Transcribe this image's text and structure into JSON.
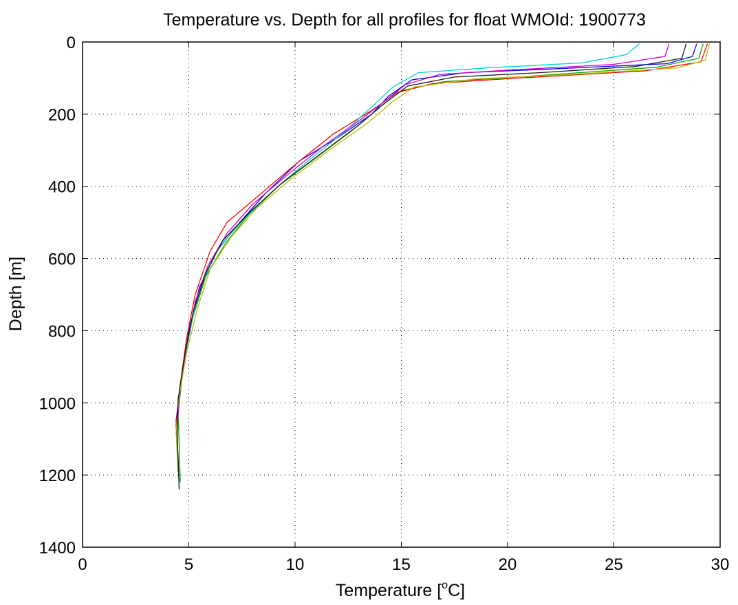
{
  "chart_data": {
    "type": "line",
    "title": "Temperature vs. Depth for all profiles for float WMOId: 1900773",
    "xlabel_prefix": "Temperature [",
    "xlabel_sup": "o",
    "xlabel_suffix": "C]",
    "ylabel": "Depth [m]",
    "xlim": [
      0,
      30
    ],
    "ylim": [
      0,
      1400
    ],
    "y_reversed": true,
    "grid": true,
    "x_ticks": [
      0,
      5,
      10,
      15,
      20,
      25,
      30
    ],
    "y_ticks": [
      0,
      200,
      400,
      600,
      800,
      1000,
      1200,
      1400
    ],
    "colors": [
      "#0000ff",
      "#00aa00",
      "#ff0000",
      "#00cccc",
      "#cc00cc",
      "#bbbb00",
      "#1a1a1a"
    ],
    "series_count": 7,
    "series": [
      {
        "color": "#0000ff",
        "values": [
          [
            28.9,
            5
          ],
          [
            28.7,
            40
          ],
          [
            27.5,
            60
          ],
          [
            22.0,
            75
          ],
          [
            18.0,
            85
          ],
          [
            15.5,
            105
          ],
          [
            14.4,
            150
          ],
          [
            13.6,
            200
          ],
          [
            12.0,
            265
          ],
          [
            10.2,
            330
          ],
          [
            8.6,
            420
          ],
          [
            7.4,
            500
          ],
          [
            6.3,
            580
          ],
          [
            5.5,
            680
          ],
          [
            5.0,
            800
          ],
          [
            4.6,
            950
          ],
          [
            4.4,
            1050
          ],
          [
            4.5,
            1150
          ],
          [
            4.55,
            1240
          ]
        ]
      },
      {
        "color": "#00aa00",
        "values": [
          [
            29.2,
            5
          ],
          [
            29.0,
            45
          ],
          [
            27.0,
            70
          ],
          [
            21.0,
            95
          ],
          [
            17.0,
            110
          ],
          [
            15.0,
            135
          ],
          [
            14.0,
            180
          ],
          [
            12.8,
            240
          ],
          [
            11.0,
            320
          ],
          [
            9.2,
            400
          ],
          [
            7.8,
            480
          ],
          [
            6.7,
            560
          ],
          [
            5.8,
            650
          ],
          [
            5.1,
            780
          ],
          [
            4.7,
            920
          ],
          [
            4.5,
            1030
          ],
          [
            4.55,
            1120
          ],
          [
            4.6,
            1220
          ]
        ]
      },
      {
        "color": "#ff0000",
        "values": [
          [
            29.4,
            5
          ],
          [
            29.1,
            55
          ],
          [
            26.5,
            80
          ],
          [
            20.5,
            100
          ],
          [
            16.5,
            115
          ],
          [
            14.8,
            140
          ],
          [
            13.6,
            190
          ],
          [
            11.8,
            255
          ],
          [
            10.0,
            340
          ],
          [
            8.4,
            420
          ],
          [
            6.8,
            500
          ],
          [
            6.0,
            580
          ],
          [
            5.3,
            700
          ],
          [
            4.9,
            820
          ],
          [
            4.6,
            950
          ],
          [
            4.4,
            1060
          ],
          [
            4.5,
            1190
          ]
        ]
      },
      {
        "color": "#00cccc",
        "values": [
          [
            26.2,
            5
          ],
          [
            25.6,
            35
          ],
          [
            23.5,
            58
          ],
          [
            19.0,
            72
          ],
          [
            15.8,
            85
          ],
          [
            14.6,
            125
          ],
          [
            13.7,
            175
          ],
          [
            12.3,
            250
          ],
          [
            10.6,
            330
          ],
          [
            9.0,
            410
          ],
          [
            7.6,
            490
          ],
          [
            6.4,
            570
          ],
          [
            5.7,
            660
          ],
          [
            5.2,
            760
          ],
          [
            4.8,
            880
          ],
          [
            4.5,
            1000
          ],
          [
            4.45,
            1100
          ],
          [
            4.5,
            1180
          ]
        ]
      },
      {
        "color": "#cc00cc",
        "values": [
          [
            27.6,
            5
          ],
          [
            27.4,
            40
          ],
          [
            25.0,
            62
          ],
          [
            20.0,
            78
          ],
          [
            16.8,
            90
          ],
          [
            15.2,
            118
          ],
          [
            14.3,
            160
          ],
          [
            13.2,
            210
          ],
          [
            11.3,
            290
          ],
          [
            9.6,
            370
          ],
          [
            8.0,
            450
          ],
          [
            6.8,
            530
          ],
          [
            5.9,
            620
          ],
          [
            5.3,
            720
          ],
          [
            4.9,
            840
          ],
          [
            4.6,
            960
          ],
          [
            4.45,
            1070
          ],
          [
            4.5,
            1170
          ]
        ]
      },
      {
        "color": "#bbbb00",
        "values": [
          [
            29.5,
            5
          ],
          [
            29.3,
            50
          ],
          [
            28.0,
            72
          ],
          [
            23.0,
            90
          ],
          [
            18.5,
            102
          ],
          [
            15.6,
            125
          ],
          [
            14.6,
            165
          ],
          [
            13.4,
            225
          ],
          [
            11.6,
            300
          ],
          [
            9.8,
            380
          ],
          [
            8.2,
            460
          ],
          [
            7.0,
            540
          ],
          [
            6.0,
            630
          ],
          [
            5.4,
            740
          ],
          [
            4.9,
            860
          ],
          [
            4.55,
            980
          ],
          [
            4.4,
            1080
          ],
          [
            4.5,
            1190
          ]
        ]
      },
      {
        "color": "#1a1a1a",
        "values": [
          [
            28.4,
            5
          ],
          [
            28.2,
            45
          ],
          [
            26.0,
            68
          ],
          [
            21.5,
            85
          ],
          [
            17.5,
            97
          ],
          [
            15.3,
            122
          ],
          [
            14.2,
            170
          ],
          [
            13.0,
            230
          ],
          [
            11.2,
            310
          ],
          [
            9.4,
            390
          ],
          [
            7.9,
            470
          ],
          [
            6.6,
            550
          ],
          [
            5.8,
            640
          ],
          [
            5.2,
            750
          ],
          [
            4.8,
            870
          ],
          [
            4.5,
            990
          ],
          [
            4.45,
            1090
          ],
          [
            4.55,
            1240
          ]
        ]
      }
    ]
  }
}
